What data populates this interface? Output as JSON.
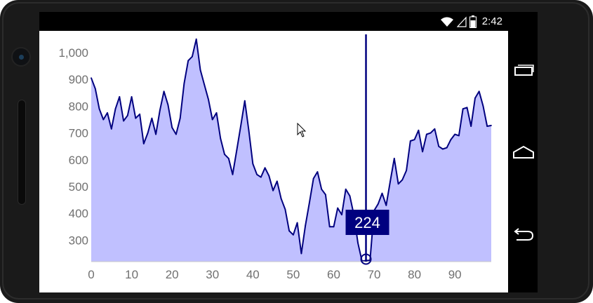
{
  "statusbar": {
    "time": "2:42",
    "icons": [
      "wifi-icon",
      "signal-icon",
      "battery-icon"
    ]
  },
  "navbar": {
    "icons": [
      "recent-apps-icon",
      "home-icon",
      "back-icon"
    ]
  },
  "colors": {
    "series_line": "#00007f",
    "series_fill": "#c0c0ff",
    "tooltip_bg": "#00007f",
    "axis_text": "#707070"
  },
  "chart_data": {
    "type": "area",
    "title": "",
    "xlabel": "",
    "ylabel": "",
    "xlim": [
      0,
      99
    ],
    "ylim": [
      220,
      1060
    ],
    "x_ticks": [
      0,
      10,
      20,
      30,
      40,
      50,
      60,
      70,
      80,
      90
    ],
    "y_ticks": [
      300,
      400,
      500,
      600,
      700,
      800,
      900,
      1000
    ],
    "y_tick_labels": [
      "300",
      "400",
      "500",
      "600",
      "700",
      "800",
      "900",
      "1,000"
    ],
    "grid": false,
    "legend": "none",
    "series": [
      {
        "x": [
          0,
          1,
          2,
          3,
          4,
          5,
          6,
          7,
          8,
          9,
          10,
          11,
          12,
          13,
          14,
          15,
          16,
          17,
          18,
          19,
          20,
          21,
          22,
          23,
          24,
          25,
          26,
          27,
          28,
          29,
          30,
          31,
          32,
          33,
          34,
          35,
          36,
          37,
          38,
          39,
          40,
          41,
          42,
          43,
          44,
          45,
          46,
          47,
          48,
          49,
          50,
          51,
          52,
          53,
          54,
          55,
          56,
          57,
          58,
          59,
          60,
          61,
          62,
          63,
          64,
          65,
          66,
          67,
          68,
          69,
          70,
          71,
          72,
          73,
          74,
          75,
          76,
          77,
          78,
          79,
          80,
          81,
          82,
          83,
          84,
          85,
          86,
          87,
          88,
          89,
          90,
          91,
          92,
          93,
          94,
          95,
          96,
          97,
          98,
          99
        ],
        "values": [
          905,
          865,
          790,
          750,
          775,
          715,
          790,
          835,
          745,
          765,
          835,
          755,
          770,
          660,
          700,
          755,
          695,
          785,
          855,
          805,
          720,
          695,
          755,
          885,
          970,
          985,
          1050,
          935,
          880,
          825,
          750,
          775,
          680,
          620,
          605,
          545,
          635,
          725,
          820,
          710,
          585,
          545,
          535,
          570,
          540,
          485,
          520,
          455,
          415,
          335,
          320,
          365,
          250,
          355,
          440,
          530,
          555,
          490,
          470,
          350,
          350,
          420,
          395,
          490,
          465,
          395,
          290,
          222,
          224,
          225,
          410,
          435,
          475,
          430,
          520,
          605,
          510,
          525,
          560,
          670,
          675,
          710,
          630,
          695,
          700,
          715,
          650,
          640,
          645,
          675,
          695,
          690,
          790,
          795,
          725,
          830,
          855,
          800,
          725,
          728
        ]
      }
    ],
    "crosshair": {
      "x": 68,
      "value": 224,
      "label": "224"
    }
  }
}
